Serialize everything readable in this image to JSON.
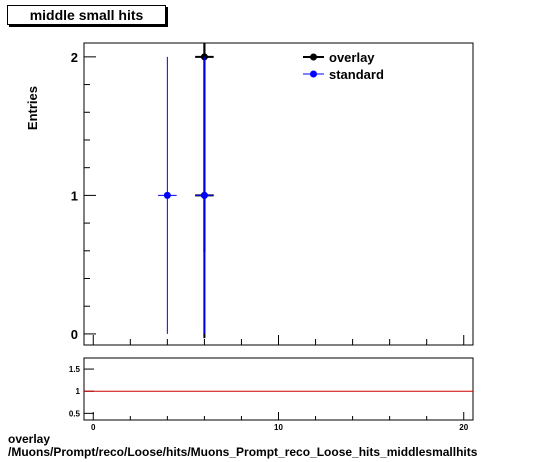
{
  "header": {
    "title": "middle small hits"
  },
  "footer": {
    "line1": "overlay",
    "line2": "/Muons/Prompt/reco/Loose/hits/Muons_Prompt_reco_Loose_hits_middlesmallhits"
  },
  "colors": {
    "overlay": "#000000",
    "standard": "#0000ff",
    "ratio_line": "#cc0000"
  },
  "chart_data": [
    {
      "type": "scatter",
      "ylabel": "Entries",
      "xlim": [
        -0.5,
        20.5
      ],
      "ylim": [
        -0.08,
        2.1
      ],
      "yticks": [
        0,
        1,
        2
      ],
      "legend": {
        "position": "top-right",
        "entries": [
          "overlay",
          "standard"
        ]
      },
      "series": [
        {
          "name": "overlay",
          "points": [
            {
              "x": 6,
              "y": 2,
              "err": 1.41
            },
            {
              "x": 6,
              "y": 1,
              "err": 1.41
            }
          ]
        },
        {
          "name": "standard",
          "points": [
            {
              "x": 4,
              "y": 1,
              "err": 1
            },
            {
              "x": 6,
              "y": 1,
              "err": 1
            }
          ]
        }
      ]
    },
    {
      "type": "line",
      "xlim": [
        -0.5,
        20.5
      ],
      "ylim": [
        0.35,
        1.75
      ],
      "xticks": [
        0,
        10,
        20
      ],
      "yticks": [
        0.5,
        1,
        1.5
      ],
      "ytick_labels": [
        "0.5",
        "1",
        "1.5"
      ],
      "reference_line": 1
    }
  ]
}
